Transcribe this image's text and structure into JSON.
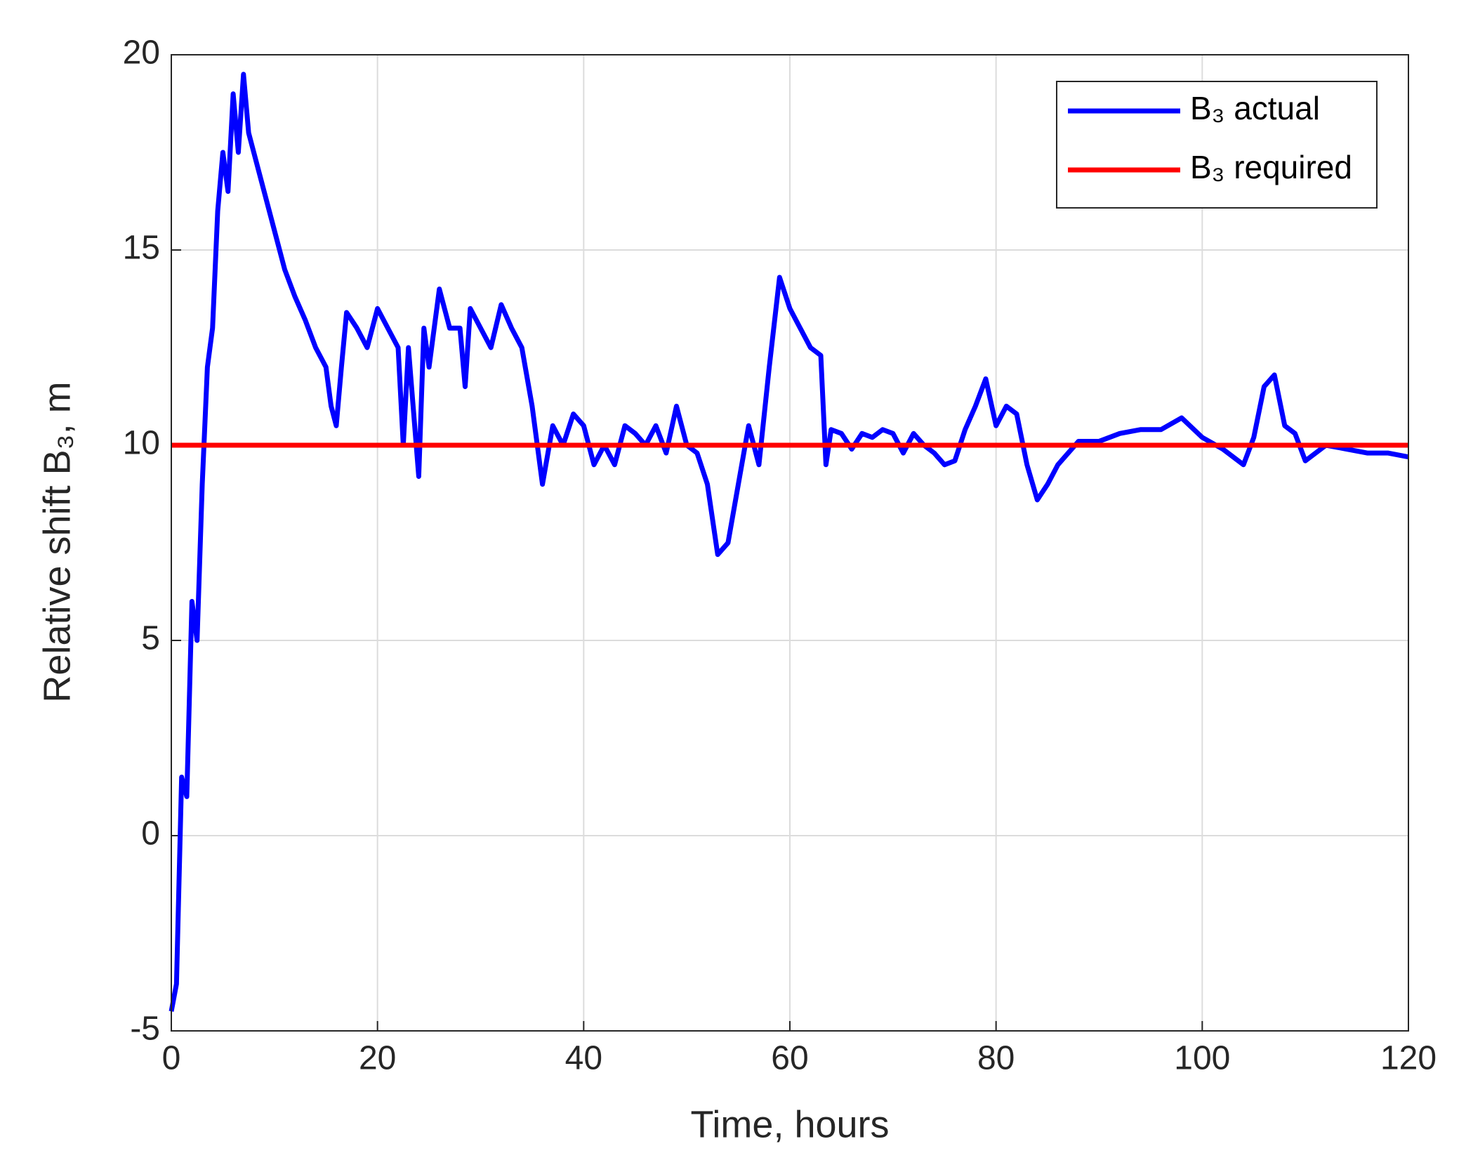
{
  "chart_data": {
    "type": "line",
    "xlabel": "Time, hours",
    "ylabel": "Relative shift B₃, m",
    "xlim": [
      0,
      120
    ],
    "xticks": [
      0,
      20,
      40,
      60,
      80,
      100,
      120
    ],
    "ylim": [
      -5,
      20
    ],
    "yticks": [
      -5,
      0,
      5,
      10,
      15,
      20
    ],
    "grid": true,
    "legend": "upper-right",
    "series": [
      {
        "name": "B₃ actual",
        "color": "#0000ff",
        "x": [
          0,
          0.5,
          1,
          1.5,
          2,
          2.5,
          3,
          3.5,
          4,
          4.5,
          5,
          5.5,
          6,
          6.5,
          7,
          7.5,
          8,
          9,
          10,
          11,
          12,
          13,
          14,
          15,
          15.5,
          16,
          16.5,
          17,
          18,
          19,
          20,
          21,
          22,
          22.5,
          23,
          24,
          24.5,
          25,
          26,
          27,
          28,
          28.5,
          29,
          30,
          31,
          32,
          33,
          34,
          35,
          36,
          37,
          38,
          39,
          40,
          41,
          42,
          43,
          44,
          45,
          46,
          47,
          48,
          49,
          50,
          51,
          52,
          53,
          54,
          55,
          56,
          57,
          58,
          59,
          60,
          61,
          62,
          63,
          63.5,
          64,
          65,
          66,
          67,
          68,
          69,
          70,
          71,
          72,
          73,
          74,
          75,
          76,
          77,
          78,
          79,
          80,
          81,
          82,
          83,
          84,
          85,
          86,
          87,
          88,
          90,
          92,
          94,
          96,
          98,
          100,
          102,
          104,
          105,
          106,
          107,
          108,
          109,
          110,
          112,
          114,
          116,
          118,
          120
        ],
        "values": [
          -4.5,
          -3.8,
          1.5,
          1,
          6,
          5,
          9,
          12,
          13,
          16,
          17.5,
          16.5,
          19,
          17.5,
          19.5,
          18,
          17.5,
          16.5,
          15.5,
          14.5,
          13.8,
          13.2,
          12.5,
          12,
          11,
          10.5,
          12,
          13.4,
          13,
          12.5,
          13.5,
          13,
          12.5,
          10,
          12.5,
          9.2,
          13,
          12,
          14,
          13,
          13,
          11.5,
          13.5,
          13,
          12.5,
          13.6,
          13,
          12.5,
          11,
          9,
          10.5,
          10,
          10.8,
          10.5,
          9.5,
          10,
          9.5,
          10.5,
          10.3,
          10,
          10.5,
          9.8,
          11,
          10,
          9.8,
          9,
          7.2,
          7.5,
          9,
          10.5,
          9.5,
          12,
          14.3,
          13.5,
          13,
          12.5,
          12.3,
          9.5,
          10.4,
          10.3,
          9.9,
          10.3,
          10.2,
          10.4,
          10.3,
          9.8,
          10.3,
          10,
          9.8,
          9.5,
          9.6,
          10.4,
          11,
          11.7,
          10.5,
          11,
          10.8,
          9.5,
          8.6,
          9,
          9.5,
          9.8,
          10.1,
          10.1,
          10.3,
          10.4,
          10.4,
          10.7,
          10.2,
          9.9,
          9.5,
          10.2,
          11.5,
          11.8,
          10.5,
          10.3,
          9.6,
          10,
          9.9,
          9.8,
          9.8,
          9.7
        ]
      },
      {
        "name": "B₃ required",
        "color": "#ff0000",
        "x": [
          0,
          120
        ],
        "values": [
          10,
          10
        ]
      }
    ]
  }
}
